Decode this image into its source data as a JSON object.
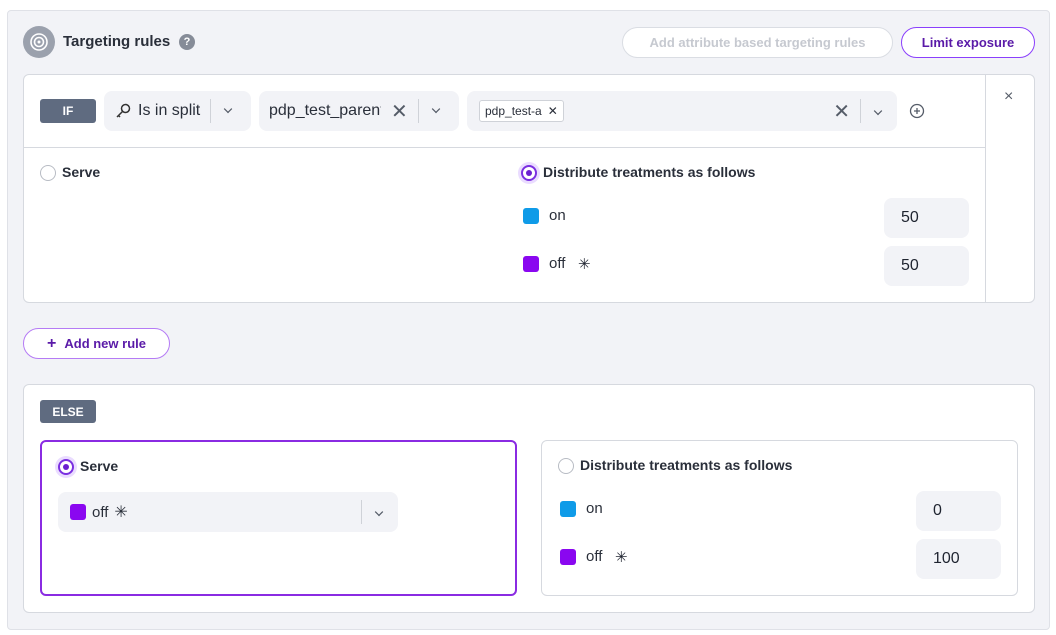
{
  "header": {
    "title": "Targeting rules",
    "help": "?",
    "add_attr_label": "Add attribute based targeting rules",
    "limit_label": "Limit exposure"
  },
  "if_rule": {
    "tag": "IF",
    "matcher": "Is in split",
    "split": "pdp_test_parent",
    "chip": "pdp_test-a",
    "serve_label": "Serve",
    "distribute_label": "Distribute treatments as follows",
    "selected": "distribute",
    "treatments": [
      {
        "name": "on",
        "value": "50",
        "color": "#0f9be8"
      },
      {
        "name": "off",
        "value": "50",
        "color": "#8a07f0",
        "default": true
      }
    ]
  },
  "add_rule_label": "Add new rule",
  "else_rule": {
    "tag": "ELSE",
    "serve_label": "Serve",
    "serve_value": "off",
    "distribute_label": "Distribute treatments as follows",
    "selected": "serve",
    "treatments": [
      {
        "name": "on",
        "value": "0",
        "color": "#0f9be8"
      },
      {
        "name": "off",
        "value": "100",
        "color": "#8a07f0",
        "default": true
      }
    ]
  }
}
